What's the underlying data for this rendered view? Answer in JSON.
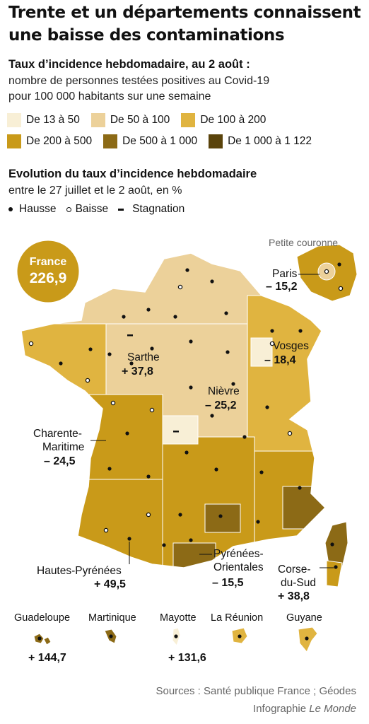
{
  "header": {
    "title": "Trente et un départements connaissent une baisse des contaminations"
  },
  "incidence": {
    "title": "Taux d’incidence hebdomadaire, au 2 août :",
    "line1": "nombre de personnes testées positives au Covid-19",
    "line2": "pour 100 000 habitants sur une semaine"
  },
  "legend": {
    "classes": [
      {
        "label": "De 13 à 50",
        "color": "#f8efd6"
      },
      {
        "label": "De 50 à 100",
        "color": "#ecd19a"
      },
      {
        "label": "De 100 à 200",
        "color": "#e0b440"
      },
      {
        "label": "De 200 à 500",
        "color": "#c99a19"
      },
      {
        "label": "De 500 à 1 000",
        "color": "#8c6a16"
      },
      {
        "label": "De 1 000 à 1 122",
        "color": "#5a430b"
      }
    ]
  },
  "evolution": {
    "title": "Evolution du taux d’incidence hebdomadaire",
    "subtitle": "entre le 27 juillet et le 2 août, en %",
    "markers": [
      {
        "label": "Hausse",
        "symbol": "filled-dot"
      },
      {
        "label": "Baisse",
        "symbol": "hollow-dot"
      },
      {
        "label": "Stagnation",
        "symbol": "dash"
      }
    ]
  },
  "map": {
    "france": {
      "label": "France",
      "value": "226,9"
    },
    "petite_couronne_label": "Petite couronne",
    "callouts": [
      {
        "name": "Paris",
        "value": "– 15,2",
        "trend": "Baisse"
      },
      {
        "name": "Sarthe",
        "value": "+ 37,8",
        "trend": "Hausse"
      },
      {
        "name": "Vosges",
        "value": "– 18,4",
        "trend": "Baisse"
      },
      {
        "name": "Nièvre",
        "value": "– 25,2",
        "trend": "Baisse"
      },
      {
        "name": "Charente-Maritime",
        "value": "– 24,5",
        "trend": "Baisse"
      },
      {
        "name": "Hautes-Pyrénées",
        "value": "+ 49,5",
        "trend": "Hausse"
      },
      {
        "name": "Pyrénées-Orientales",
        "value": "– 15,5",
        "trend": "Baisse"
      },
      {
        "name": "Corse-du-Sud",
        "value": "+ 38,8",
        "trend": "Hausse"
      }
    ],
    "overseas": [
      {
        "name": "Guadeloupe",
        "value": "+ 144,7",
        "class": "De 500 à 1 000"
      },
      {
        "name": "Martinique",
        "value": "",
        "class": "De 500 à 1 000"
      },
      {
        "name": "Mayotte",
        "value": "+ 131,6",
        "class": "De 13 à 50"
      },
      {
        "name": "La Réunion",
        "value": "",
        "class": "De 100 à 200"
      },
      {
        "name": "Guyane",
        "value": "",
        "class": "De 100 à 200"
      }
    ]
  },
  "footer": {
    "sources": "Sources : Santé publique France ; Géodes",
    "credit_prefix": "Infographie",
    "credit_brand": "Le Monde"
  }
}
